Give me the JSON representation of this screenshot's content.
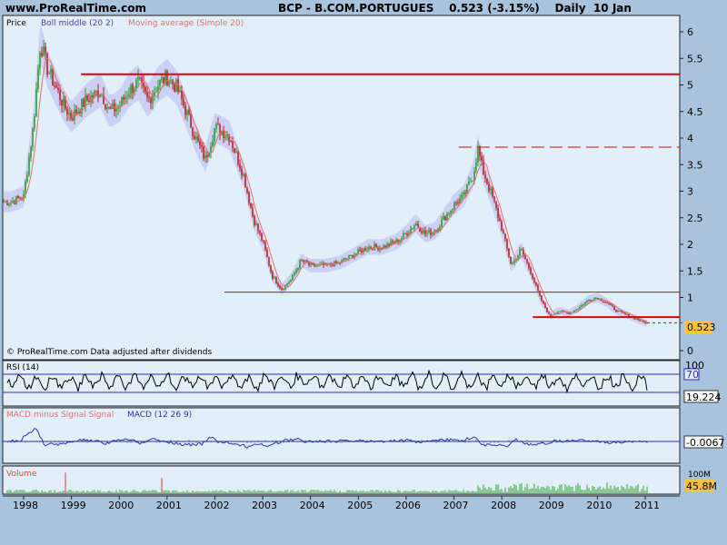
{
  "header": {
    "site": "www.ProRealTime.com",
    "title": "BCP - B.COM.PORTUGUES    0.523 (-3.15%)    Daily  10 Jan"
  },
  "price_panel": {
    "legend": [
      "Price",
      "Boll middle (20 2)",
      "Moving average (Simple 20)"
    ],
    "footer_note": "© ProRealTime.com  Data adjusted after dividends",
    "last_price_label": "0.523",
    "y_ticks": [
      "6",
      "5.5",
      "5",
      "4.5",
      "4",
      "3.5",
      "3",
      "2.5",
      "2",
      "1.5",
      "1",
      "0"
    ]
  },
  "rsi_panel": {
    "label": "RSI (14)",
    "ticks": [
      "100",
      "70"
    ],
    "last_label": "19.224"
  },
  "macd_panel": {
    "label_hist": "MACD minus Signal Signal",
    "label_macd": "MACD (12 26 9)",
    "last_label": "-0.0067"
  },
  "volume_panel": {
    "label": "Volume",
    "tick_label": "100M",
    "last_label": "45.8M"
  },
  "colors": {
    "background": "#a9c3dd",
    "panel": "#e2eef8",
    "candle_up": "#2e9e2e",
    "candle_down": "#c02020",
    "boll_band": "#b8b8f0",
    "moving_average": "#e27070",
    "resistance_line": "#e00000",
    "rsi_line": "#000000",
    "macd_line": "#3030b0",
    "volume_bar": "#31a331",
    "volume_spike": "#e03030",
    "last_label_bg": "#f5c542"
  },
  "chart_data": {
    "type": "line",
    "title": "BCP - B.COM.PORTUGUES",
    "x_labels": [
      "1998",
      "1999",
      "2000",
      "2001",
      "2002",
      "2003",
      "2004",
      "2005",
      "2006",
      "2007",
      "2008",
      "2009",
      "2010",
      "2011"
    ],
    "ylim": [
      0,
      6.2
    ],
    "series": [
      {
        "name": "Price",
        "x": [
          1997.75,
          1998.0,
          1998.2,
          1998.35,
          1998.5,
          1998.7,
          1998.85,
          1999.0,
          1999.3,
          1999.6,
          1999.8,
          2000.0,
          2000.2,
          2000.4,
          2000.6,
          2000.8,
          2001.0,
          2001.2,
          2001.4,
          2001.6,
          2001.8,
          2002.0,
          2002.3,
          2002.6,
          2002.8,
          2003.0,
          2003.2,
          2003.4,
          2003.6,
          2003.8,
          2004.0,
          2004.3,
          2004.6,
          2004.9,
          2005.2,
          2005.5,
          2005.8,
          2006.0,
          2006.2,
          2006.4,
          2006.6,
          2006.8,
          2007.0,
          2007.2,
          2007.4,
          2007.5,
          2007.6,
          2007.8,
          2008.0,
          2008.2,
          2008.4,
          2008.6,
          2008.8,
          2009.0,
          2009.2,
          2009.4,
          2009.6,
          2009.8,
          2010.0,
          2010.2,
          2010.4,
          2010.6,
          2010.8,
          2011.0
        ],
        "y": [
          2.8,
          2.9,
          4.2,
          5.8,
          5.3,
          4.9,
          4.6,
          4.4,
          4.7,
          4.9,
          4.5,
          4.6,
          4.9,
          5.05,
          4.7,
          5.0,
          5.15,
          4.95,
          4.5,
          4.0,
          3.6,
          4.2,
          4.05,
          3.3,
          2.5,
          2.05,
          1.4,
          1.15,
          1.35,
          1.7,
          1.6,
          1.6,
          1.65,
          1.8,
          1.95,
          1.95,
          2.05,
          2.2,
          2.4,
          2.2,
          2.25,
          2.5,
          2.75,
          2.9,
          3.3,
          3.8,
          3.4,
          2.9,
          2.3,
          1.6,
          1.9,
          1.5,
          1.0,
          0.65,
          0.75,
          0.7,
          0.8,
          0.95,
          1.0,
          0.9,
          0.75,
          0.68,
          0.6,
          0.52
        ]
      }
    ],
    "horizontal_lines": [
      {
        "y": 5.2,
        "style": "solid",
        "x_start": 1999.2
      },
      {
        "y": 3.83,
        "style": "dashed",
        "x_start": 2007.1
      },
      {
        "y": 1.1,
        "style": "solid",
        "x_start": 2002.2
      },
      {
        "y": 0.63,
        "style": "solid",
        "x_start": 2008.65
      }
    ],
    "last_price": 0.523,
    "rsi": {
      "last": 19.224,
      "reference_level": 70,
      "ylim": [
        0,
        100
      ]
    },
    "macd": {
      "last": -0.0067
    },
    "volume": {
      "last": "45.8M"
    }
  }
}
